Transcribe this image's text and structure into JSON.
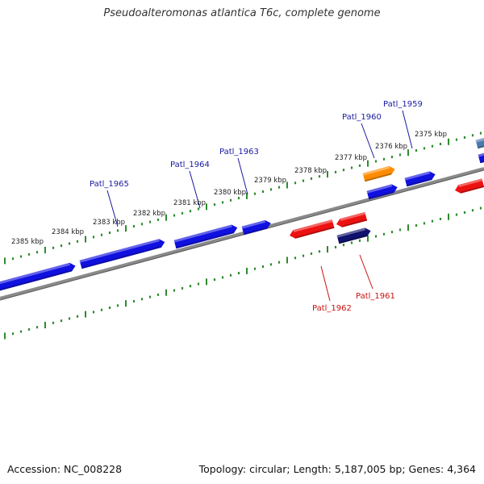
{
  "title": "Pseudoalteromonas atlantica T6c, complete genome",
  "footer": {
    "accession": "Accession: NC_008228",
    "summary": "Topology: circular; Length: 5,187,005 bp; Genes: 4,364"
  },
  "colors": {
    "backbone": "#8a8a8a",
    "tick": "#2e8b2e",
    "gene_label_forward": "#1a1aa0",
    "gene_label_reverse": "#cc1111",
    "kbp_label": "#222222"
  },
  "kbp_labels": [
    "2385 kbp",
    "2384 kbp",
    "2383 kbp",
    "2382 kbp",
    "2381 kbp",
    "2380 kbp",
    "2379 kbp",
    "2378 kbp",
    "2377 kbp",
    "2376 kbp",
    "2375 kbp"
  ],
  "gene_labels_forward": [
    "Patl_1965",
    "Patl_1964",
    "Patl_1963",
    "Patl_1960",
    "Patl_1959"
  ],
  "gene_labels_reverse": [
    "Patl_1962",
    "Patl_1961"
  ]
}
